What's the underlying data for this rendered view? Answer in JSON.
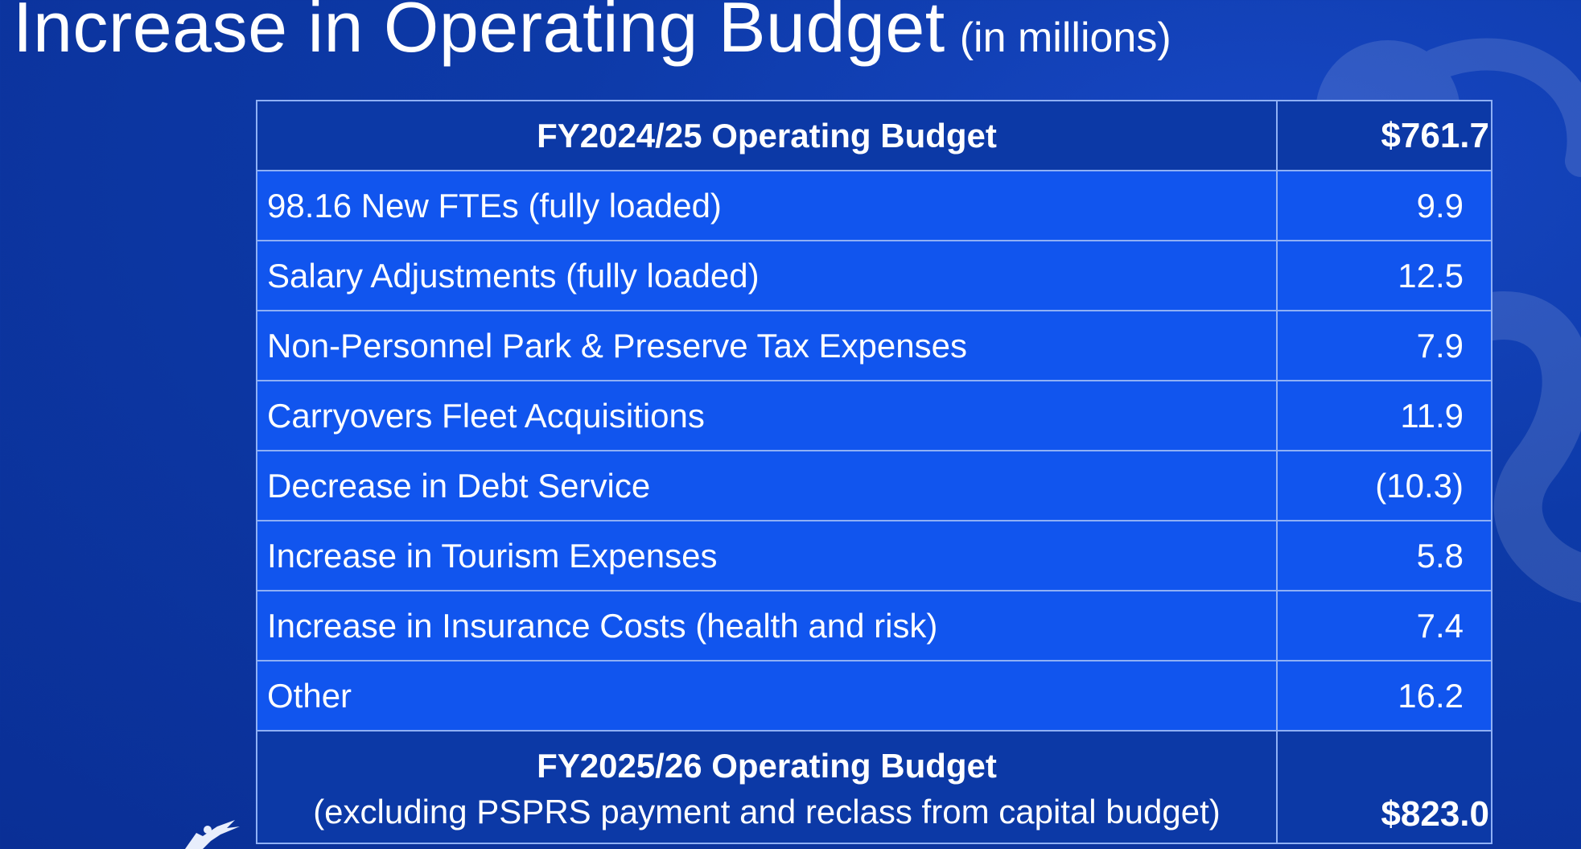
{
  "title": {
    "main": "Increase in Operating Budget",
    "sub": "(in  millions)"
  },
  "table": {
    "header": {
      "label": "FY2024/25 Operating Budget",
      "value": "$761.7"
    },
    "rows": [
      {
        "label": "98.16 New FTEs  (fully loaded)",
        "value": "9.9"
      },
      {
        "label": "Salary Adjustments (fully loaded)",
        "value": "12.5"
      },
      {
        "label": "Non-Personnel Park & Preserve Tax  Expenses",
        "value": "7.9"
      },
      {
        "label": "Carryovers Fleet Acquisitions",
        "value": "11.9"
      },
      {
        "label": "Decrease in Debt Service",
        "value": "(10.3)"
      },
      {
        "label": "Increase in Tourism Expenses",
        "value": "5.8"
      },
      {
        "label": "Increase in Insurance Costs (health and risk)",
        "value": "7.4"
      },
      {
        "label": "Other",
        "value": "16.2"
      }
    ],
    "footer": {
      "label_line1": "FY2025/26 Operating Budget",
      "label_line2": "(excluding PSPRS payment and reclass from capital budget)",
      "value": "$823.0"
    }
  },
  "colors": {
    "background": "#0d3aa8",
    "row_fill": "#1155ee",
    "header_fill": "#0c39a6",
    "border": "#8fb0f5",
    "text": "#ffffff"
  }
}
